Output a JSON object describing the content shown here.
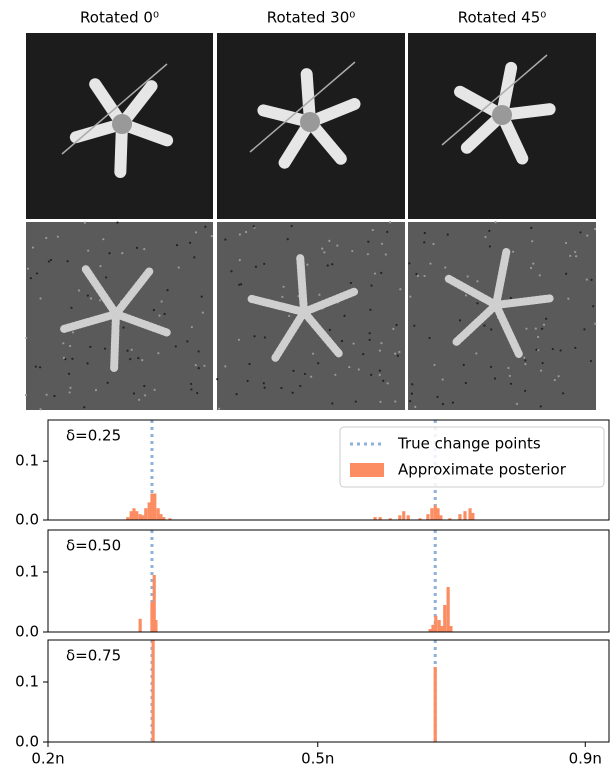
{
  "panels": {
    "titles": [
      "Rotated 0⁰",
      "Rotated 30⁰",
      "Rotated 45⁰"
    ]
  },
  "chart_data": [
    {
      "type": "bar",
      "annotation": "δ=0.25",
      "legend": "upper right",
      "xlim": [
        0,
        100
      ],
      "ylim": [
        0,
        0.17
      ],
      "yticks": [
        {
          "value": 0,
          "label": "0.0"
        },
        0.1
      ],
      "series": [
        {
          "name": "True change points",
          "type": "vline",
          "color": "#8fb0d9",
          "x": [
            18.5,
            68.9
          ]
        },
        {
          "name": "Approximate posterior",
          "color": "#fc8d62",
          "x": [
            14.2,
            14.8,
            15.3,
            15.8,
            16.4,
            16.9,
            17.4,
            18.0,
            18.5,
            19.0,
            19.6,
            20.1,
            20.6,
            21.7,
            58.2,
            59.1,
            60.9,
            62.6,
            63.3,
            64.1,
            66.2,
            67.6,
            68.3,
            68.9,
            69.4,
            69.9,
            71.5,
            73.3,
            74.2,
            75.1,
            75.6
          ],
          "values": [
            0.005,
            0.015,
            0.02,
            0.015,
            0.01,
            0.008,
            0.02,
            0.03,
            0.045,
            0.045,
            0.02,
            0.01,
            0.005,
            0.003,
            0.005,
            0.005,
            0.003,
            0.008,
            0.015,
            0.008,
            0.003,
            0.01,
            0.02,
            0.025,
            0.02,
            0.008,
            0.003,
            0.01,
            0.015,
            0.02,
            0.012
          ]
        }
      ]
    },
    {
      "type": "bar",
      "annotation": "δ=0.50",
      "xlim": [
        0,
        100
      ],
      "ylim": [
        0,
        0.17
      ],
      "yticks": [
        {
          "value": 0,
          "label": "0.0"
        },
        0.1
      ],
      "series": [
        {
          "type": "vline",
          "color": "#8fb0d9",
          "x": [
            18.5,
            68.9
          ]
        },
        {
          "color": "#fc8d62",
          "x": [
            16.4,
            18.5,
            18.9,
            19.2,
            68.0,
            68.5,
            69.0,
            69.6,
            70.1,
            70.6,
            71.2,
            71.7
          ],
          "values": [
            0.022,
            0.05,
            0.095,
            0.02,
            0.005,
            0.012,
            0.027,
            0.02,
            0.01,
            0.045,
            0.075,
            0.01
          ]
        }
      ]
    },
    {
      "type": "bar",
      "annotation": "δ=0.75",
      "xlim": [
        0,
        100
      ],
      "ylim": [
        0,
        0.17
      ],
      "yticks": [
        {
          "value": 0,
          "label": "0.0"
        },
        0.1
      ],
      "xticks": [
        {
          "value": 0,
          "label": "0.2n"
        },
        {
          "value": 48,
          "label": "0.5n"
        },
        {
          "value": 95.6,
          "label": "0.9n"
        }
      ],
      "series": [
        {
          "type": "vline",
          "color": "#8fb0d9",
          "x": [
            18.5,
            68.9
          ]
        },
        {
          "color": "#fc8d62",
          "x": [
            18.7,
            68.9
          ],
          "values": [
            0.17,
            0.125
          ]
        }
      ]
    }
  ]
}
